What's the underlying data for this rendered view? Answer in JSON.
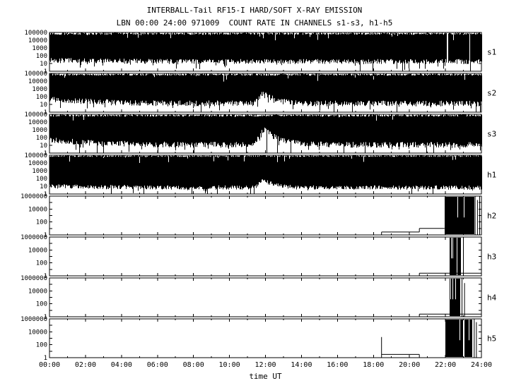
{
  "chart_data": {
    "type": "line",
    "title": "INTERBALL-Tail RF15-I HARD/SOFT X-RAY EMISSION",
    "subtitle": "LBN 00:00 24:00 971009  COUNT RATE IN CHANNELS s1-s3, h1-h5",
    "xlabel": "time UT",
    "x_range_hours": [
      0,
      24
    ],
    "x_major_tick_hours": 2,
    "x_minor_tick_hours": 1,
    "x_tick_labels": [
      "00:00",
      "02:00",
      "04:00",
      "06:00",
      "08:00",
      "10:00",
      "12:00",
      "14:00",
      "16:00",
      "18:00",
      "20:00",
      "22:00",
      "24:00"
    ],
    "background": "#ffffff",
    "axis_color": "#000000",
    "trace_color": "#000000",
    "grid": false,
    "legend": null,
    "panels": [
      {
        "label": "s1",
        "style": "noise_fill",
        "seed": 11,
        "ylim": [
          1,
          100000
        ],
        "y_tick_labels": [
          "100000",
          "10000",
          "1000",
          "100",
          "10",
          "1"
        ],
        "floor_log": 1.15,
        "floor_jitter": 0.65,
        "start_boost": 0.2,
        "spike_down_prob": 0.012,
        "top_jitter": 0.3,
        "bump": null,
        "gaps": [
          [
            22.04,
            22.12
          ],
          [
            23.3,
            23.37
          ]
        ]
      },
      {
        "label": "s2",
        "style": "noise_fill",
        "seed": 22,
        "ylim": [
          1,
          100000
        ],
        "y_tick_labels": [
          "100000",
          "10000",
          "1000",
          "100",
          "10",
          "1"
        ],
        "floor_log": 1.0,
        "floor_jitter": 0.75,
        "start_boost": 0.6,
        "spike_down_prob": 0.015,
        "top_jitter": 0.3,
        "bump": {
          "center": 11.9,
          "height": 1.3,
          "rise": 0.25,
          "decay": 0.7
        },
        "gaps": []
      },
      {
        "label": "s3",
        "style": "noise_fill",
        "seed": 33,
        "ylim": [
          1,
          100000
        ],
        "y_tick_labels": [
          "100000",
          "10000",
          "1000",
          "100",
          "10",
          "1"
        ],
        "floor_log": 0.95,
        "floor_jitter": 0.75,
        "start_boost": 0.7,
        "spike_down_prob": 0.015,
        "top_jitter": 0.3,
        "bump": {
          "center": 11.95,
          "height": 1.9,
          "rise": 0.3,
          "decay": 0.9
        },
        "gaps": []
      },
      {
        "label": "h1",
        "style": "noise_fill",
        "seed": 44,
        "ylim": [
          1,
          100000
        ],
        "y_tick_labels": [
          "100000",
          "10000",
          "1000",
          "100",
          "10",
          "1"
        ],
        "floor_log": 0.75,
        "floor_jitter": 0.55,
        "start_boost": 0.2,
        "spike_down_prob": 0.008,
        "top_jitter": 0.22,
        "bump": {
          "center": 11.9,
          "height": 0.9,
          "rise": 0.25,
          "decay": 0.7
        },
        "gaps": []
      },
      {
        "label": "h2",
        "style": "events",
        "seed": 55,
        "ylim": [
          1,
          1000000
        ],
        "y_tick_labels": [
          "1000000",
          "10000",
          "100",
          "1"
        ],
        "segments": [
          [
            0,
            18.45,
            0
          ],
          [
            18.45,
            20.55,
            0.45
          ],
          [
            20.55,
            21.95,
            1.0
          ],
          [
            23.6,
            24,
            0
          ]
        ],
        "bursts": [
          [
            21.95,
            23.55,
            0.86
          ]
        ],
        "spikes": [
          [
            23.65,
            6
          ],
          [
            23.78,
            5.4
          ],
          [
            23.9,
            6
          ]
        ]
      },
      {
        "label": "h3",
        "style": "events",
        "seed": 66,
        "ylim": [
          1,
          1000000
        ],
        "y_tick_labels": [
          "1000000",
          "10000",
          "100",
          "1"
        ],
        "segments": [
          [
            0,
            20.55,
            0
          ],
          [
            20.55,
            24,
            0.4
          ]
        ],
        "bursts": [
          [
            22.25,
            22.6,
            0.9
          ],
          [
            22.65,
            22.82,
            0.9
          ]
        ],
        "spikes": [
          [
            23.0,
            6
          ]
        ]
      },
      {
        "label": "h4",
        "style": "events",
        "seed": 77,
        "ylim": [
          1,
          1000000
        ],
        "y_tick_labels": [
          "1000000",
          "10000",
          "100",
          "1"
        ],
        "segments": [
          [
            0,
            20.55,
            0
          ],
          [
            20.55,
            24,
            0.4
          ]
        ],
        "bursts": [
          [
            22.25,
            22.58,
            0.9
          ],
          [
            22.62,
            22.78,
            0.9
          ]
        ],
        "spikes": [
          [
            22.92,
            6
          ],
          [
            23.06,
            5.2
          ]
        ]
      },
      {
        "label": "h5",
        "style": "events",
        "seed": 88,
        "ylim": [
          1,
          1000000
        ],
        "y_tick_labels": [
          "1000000",
          "10000",
          "100",
          "1"
        ],
        "segments": [
          [
            0,
            18.45,
            0
          ],
          [
            18.45,
            20.55,
            0.5
          ],
          [
            20.55,
            24,
            0
          ]
        ],
        "bursts": [
          [
            22.0,
            23.5,
            0.8
          ]
        ],
        "spikes": [
          [
            18.45,
            3.2
          ],
          [
            23.6,
            6
          ],
          [
            23.72,
            5.5
          ]
        ]
      }
    ]
  }
}
